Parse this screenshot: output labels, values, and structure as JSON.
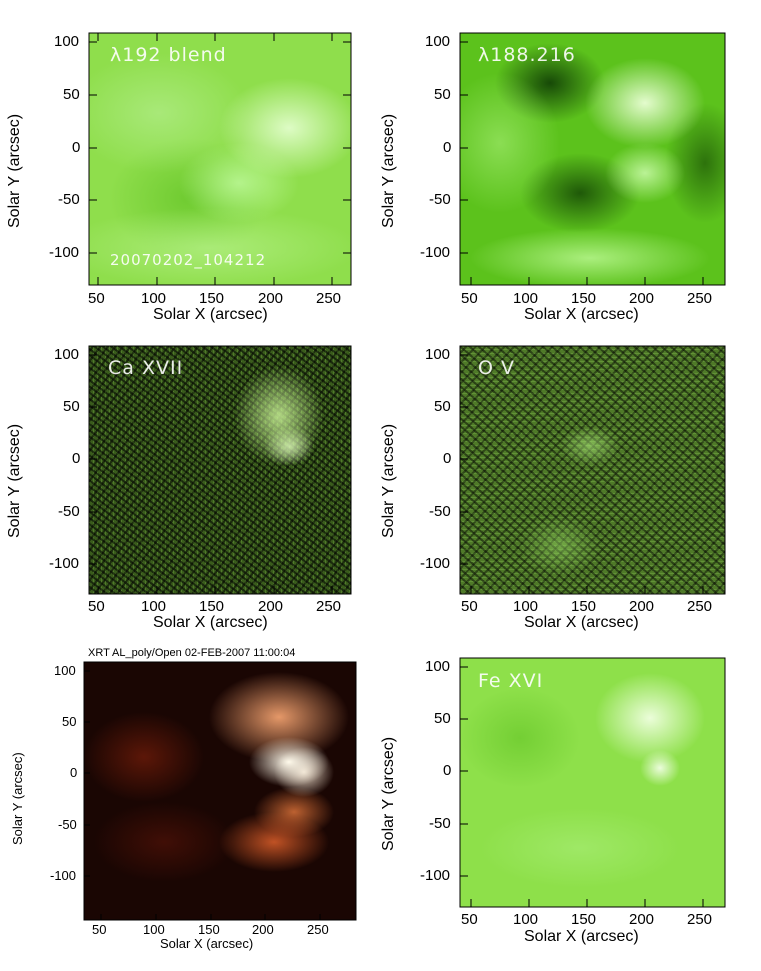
{
  "axes": {
    "xlabel": "Solar X (arcsec)",
    "ylabel": "Solar Y (arcsec)",
    "xticks": [
      "50",
      "100",
      "150",
      "200",
      "250"
    ],
    "yticks": [
      "100",
      "50",
      "0",
      "-50",
      "-100"
    ]
  },
  "panels": [
    {
      "label": "λ192 blend",
      "timestamp": "20070202_104212",
      "colormap": "green"
    },
    {
      "label": "λ188.216",
      "colormap": "green"
    },
    {
      "label": "Ca XVII",
      "colormap": "green-noisy"
    },
    {
      "label": "O V",
      "colormap": "green-noisy"
    },
    {
      "title": "XRT AL_poly/Open 02-FEB-2007 11:00:04",
      "colormap": "red"
    },
    {
      "label": "Fe XVI",
      "colormap": "green"
    }
  ],
  "colors": {
    "green_bright": "#d8ffb0",
    "green_base": "#7ed83c",
    "green_dark": "#1e4a06",
    "red_bright": "#fff0d8",
    "red_base": "#b8401a",
    "red_dark": "#140402"
  }
}
